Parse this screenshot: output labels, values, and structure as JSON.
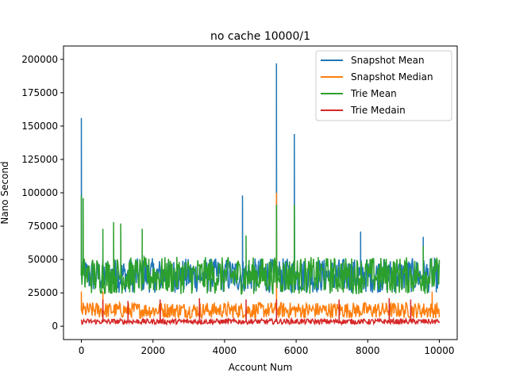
{
  "chart_data": {
    "type": "line",
    "title": "no cache 10000/1",
    "xlabel": "Account Num",
    "ylabel": "Nano Second",
    "xlim": [
      -500,
      10500
    ],
    "ylim": [
      -10000,
      210000
    ],
    "xticks": [
      0,
      2000,
      4000,
      6000,
      8000,
      10000
    ],
    "yticks": [
      0,
      25000,
      50000,
      75000,
      100000,
      125000,
      150000,
      175000,
      200000
    ],
    "xtick_labels": [
      "0",
      "2000",
      "4000",
      "6000",
      "8000",
      "10000"
    ],
    "ytick_labels": [
      "0",
      "25000",
      "50000",
      "75000",
      "100000",
      "125000",
      "150000",
      "175000",
      "200000"
    ],
    "legend_position": "top-right",
    "grid": false,
    "series": [
      {
        "name": "Snapshot Mean",
        "color": "#1f77b4",
        "baseline": 38000,
        "noise": 13000,
        "spikes": [
          [
            0,
            156000
          ],
          [
            4500,
            98000
          ],
          [
            5450,
            197000
          ],
          [
            5950,
            144000
          ],
          [
            7800,
            71000
          ],
          [
            9550,
            67000
          ],
          [
            9850,
            45000
          ]
        ]
      },
      {
        "name": "Snapshot Median",
        "color": "#ff7f0e",
        "baseline": 12000,
        "noise": 6000,
        "spikes": [
          [
            0,
            26000
          ],
          [
            600,
            26000
          ],
          [
            5450,
            100000
          ],
          [
            9800,
            26000
          ]
        ]
      },
      {
        "name": "Trie Mean",
        "color": "#2ca02c",
        "baseline": 38000,
        "noise": 14000,
        "spikes": [
          [
            0,
            98000
          ],
          [
            50,
            96000
          ],
          [
            600,
            73000
          ],
          [
            900,
            78000
          ],
          [
            1100,
            77000
          ],
          [
            1700,
            73000
          ],
          [
            4600,
            68000
          ],
          [
            5450,
            91000
          ],
          [
            5950,
            91000
          ],
          [
            9550,
            60000
          ]
        ]
      },
      {
        "name": "Trie Medain",
        "color": "#d62728",
        "baseline": 3500,
        "noise": 2000,
        "spikes": [
          [
            600,
            20000
          ],
          [
            1300,
            19000
          ],
          [
            2200,
            20000
          ],
          [
            3300,
            21000
          ],
          [
            4600,
            20000
          ],
          [
            5450,
            20000
          ],
          [
            7200,
            20000
          ],
          [
            8600,
            21000
          ],
          [
            9200,
            20000
          ]
        ]
      }
    ]
  }
}
